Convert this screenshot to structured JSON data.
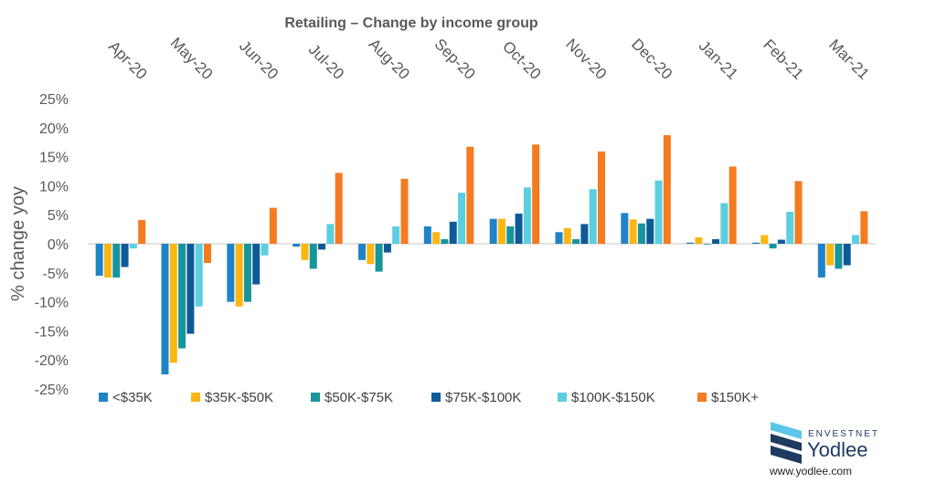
{
  "chart_data": {
    "type": "bar",
    "title": "Retailing – Change by income group",
    "ylabel": "% change yoy",
    "xlabel": "",
    "ylim": [
      -25,
      25
    ],
    "yticks": [
      25,
      20,
      15,
      10,
      5,
      0,
      -5,
      -10,
      -15,
      -20,
      -25
    ],
    "ytick_labels": [
      "25%",
      "20%",
      "15%",
      "10%",
      "5%",
      "0%",
      "-5%",
      "-10%",
      "-15%",
      "-20%",
      "-25%"
    ],
    "categories": [
      "Apr-20",
      "May-20",
      "Jun-20",
      "Jul-20",
      "Aug-20",
      "Sep-20",
      "Oct-20",
      "Nov-20",
      "Dec-20",
      "Jan-21",
      "Feb-21",
      "Mar-21"
    ],
    "legend_position": "bottom",
    "grid": false,
    "series": [
      {
        "name": "<$35K",
        "color": "#1f83c6",
        "values": [
          -5.5,
          -22.5,
          -10,
          -0.5,
          -2.8,
          3,
          4.3,
          2,
          5.3,
          0.2,
          0.2,
          -5.8
        ]
      },
      {
        "name": "$35K-$50K",
        "color": "#fbb614",
        "values": [
          -5.8,
          -20.5,
          -10.8,
          -2.8,
          -3.5,
          2,
          4.3,
          2.7,
          4.2,
          1.1,
          1.5,
          -3.7
        ]
      },
      {
        "name": "$50K-$75K",
        "color": "#17959a",
        "values": [
          -5.8,
          -18,
          -10,
          -4.3,
          -4.8,
          0.8,
          3,
          0.8,
          3.5,
          0,
          -0.8,
          -4.3
        ]
      },
      {
        "name": "$75K-$100K",
        "color": "#0f5a96",
        "values": [
          -4,
          -15.5,
          -7,
          -1,
          -1.5,
          3.8,
          5.2,
          3.4,
          4.3,
          0.8,
          0.7,
          -3.7
        ]
      },
      {
        "name": "$100K-$150K",
        "color": "#5bcfe0",
        "values": [
          -0.8,
          -10.8,
          -2,
          3.4,
          3,
          8.8,
          9.7,
          9.4,
          10.9,
          7,
          5.5,
          1.5
        ]
      },
      {
        "name": "$150K+",
        "color": "#f47b20",
        "values": [
          4.1,
          -3.3,
          6.2,
          12.2,
          11.2,
          16.7,
          17.1,
          15.9,
          18.7,
          13.3,
          10.8,
          5.6
        ]
      }
    ]
  },
  "branding": {
    "brand_top": "ENVESTNET",
    "brand_main": "Yodlee",
    "url": "www.yodlee.com",
    "logo_dark": "#1f3a5f",
    "logo_light": "#5bc6e8"
  },
  "axis_color": "#d9d9d9"
}
